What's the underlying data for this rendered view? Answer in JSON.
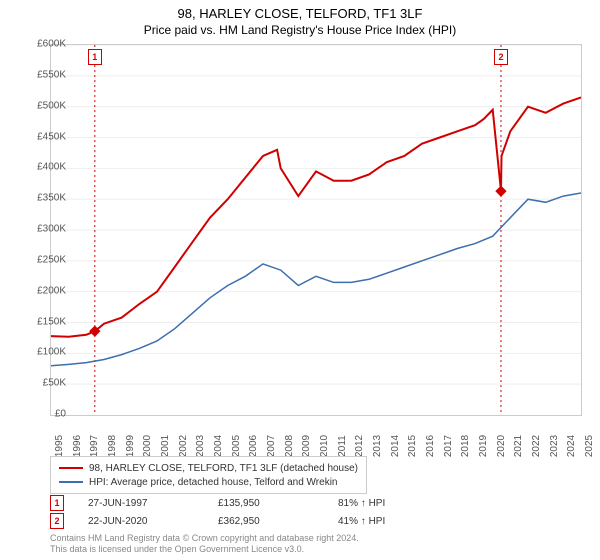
{
  "title": {
    "main": "98, HARLEY CLOSE, TELFORD, TF1 3LF",
    "sub": "Price paid vs. HM Land Registry's House Price Index (HPI)",
    "fontsize_main": 13,
    "fontsize_sub": 12
  },
  "chart": {
    "type": "line",
    "background_color": "#ffffff",
    "grid_color": "#eeeeee",
    "axis_color": "#cccccc",
    "ylim": [
      0,
      600000
    ],
    "ytick_step": 50000,
    "yticks": [
      "£0",
      "£50K",
      "£100K",
      "£150K",
      "£200K",
      "£250K",
      "£300K",
      "£350K",
      "£400K",
      "£450K",
      "£500K",
      "£550K",
      "£600K"
    ],
    "xlim": [
      1995,
      2025
    ],
    "xtick_step": 1,
    "xticks": [
      "1995",
      "1996",
      "1997",
      "1998",
      "1999",
      "2000",
      "2001",
      "2002",
      "2003",
      "2004",
      "2005",
      "2006",
      "2007",
      "2008",
      "2009",
      "2010",
      "2011",
      "2012",
      "2013",
      "2014",
      "2015",
      "2016",
      "2017",
      "2018",
      "2019",
      "2020",
      "2021",
      "2022",
      "2023",
      "2024",
      "2025"
    ],
    "series": [
      {
        "name": "98, HARLEY CLOSE, TELFORD, TF1 3LF (detached house)",
        "color": "#d10000",
        "line_width": 2,
        "data": [
          [
            1995,
            128000
          ],
          [
            1996,
            127000
          ],
          [
            1997,
            130000
          ],
          [
            1997.48,
            135950
          ],
          [
            1998,
            148000
          ],
          [
            1999,
            158000
          ],
          [
            2000,
            180000
          ],
          [
            2001,
            200000
          ],
          [
            2002,
            240000
          ],
          [
            2003,
            280000
          ],
          [
            2004,
            320000
          ],
          [
            2005,
            350000
          ],
          [
            2006,
            385000
          ],
          [
            2007,
            420000
          ],
          [
            2007.8,
            430000
          ],
          [
            2008,
            400000
          ],
          [
            2009,
            355000
          ],
          [
            2010,
            395000
          ],
          [
            2011,
            380000
          ],
          [
            2012,
            380000
          ],
          [
            2013,
            390000
          ],
          [
            2014,
            410000
          ],
          [
            2015,
            420000
          ],
          [
            2016,
            440000
          ],
          [
            2017,
            450000
          ],
          [
            2018,
            460000
          ],
          [
            2019,
            470000
          ],
          [
            2019.5,
            480000
          ],
          [
            2020,
            495000
          ],
          [
            2020.47,
            362950
          ],
          [
            2020.5,
            420000
          ],
          [
            2021,
            460000
          ],
          [
            2022,
            500000
          ],
          [
            2023,
            490000
          ],
          [
            2024,
            505000
          ],
          [
            2025,
            515000
          ]
        ]
      },
      {
        "name": "HPI: Average price, detached house, Telford and Wrekin",
        "color": "#3a6fb0",
        "line_width": 1.5,
        "data": [
          [
            1995,
            80000
          ],
          [
            1996,
            82000
          ],
          [
            1997,
            85000
          ],
          [
            1998,
            90000
          ],
          [
            1999,
            98000
          ],
          [
            2000,
            108000
          ],
          [
            2001,
            120000
          ],
          [
            2002,
            140000
          ],
          [
            2003,
            165000
          ],
          [
            2004,
            190000
          ],
          [
            2005,
            210000
          ],
          [
            2006,
            225000
          ],
          [
            2007,
            245000
          ],
          [
            2008,
            235000
          ],
          [
            2009,
            210000
          ],
          [
            2010,
            225000
          ],
          [
            2011,
            215000
          ],
          [
            2012,
            215000
          ],
          [
            2013,
            220000
          ],
          [
            2014,
            230000
          ],
          [
            2015,
            240000
          ],
          [
            2016,
            250000
          ],
          [
            2017,
            260000
          ],
          [
            2018,
            270000
          ],
          [
            2019,
            278000
          ],
          [
            2020,
            290000
          ],
          [
            2021,
            320000
          ],
          [
            2022,
            350000
          ],
          [
            2023,
            345000
          ],
          [
            2024,
            355000
          ],
          [
            2025,
            360000
          ]
        ]
      }
    ],
    "markers": [
      {
        "label": "1",
        "year": 1997.48,
        "value": 135950,
        "color": "#d10000"
      },
      {
        "label": "2",
        "year": 2020.47,
        "value": 362950,
        "color": "#d10000"
      }
    ]
  },
  "legend": {
    "items": [
      {
        "color": "#d10000",
        "label": "98, HARLEY CLOSE, TELFORD, TF1 3LF (detached house)"
      },
      {
        "color": "#3a6fb0",
        "label": "HPI: Average price, detached house, Telford and Wrekin"
      }
    ]
  },
  "transactions": [
    {
      "marker": "1",
      "color": "#d10000",
      "date": "27-JUN-1997",
      "price": "£135,950",
      "pct": "81% ↑ HPI"
    },
    {
      "marker": "2",
      "color": "#d10000",
      "date": "22-JUN-2020",
      "price": "£362,950",
      "pct": "41% ↑ HPI"
    }
  ],
  "attribution": {
    "line1": "Contains HM Land Registry data © Crown copyright and database right 2024.",
    "line2": "This data is licensed under the Open Government Licence v3.0."
  }
}
